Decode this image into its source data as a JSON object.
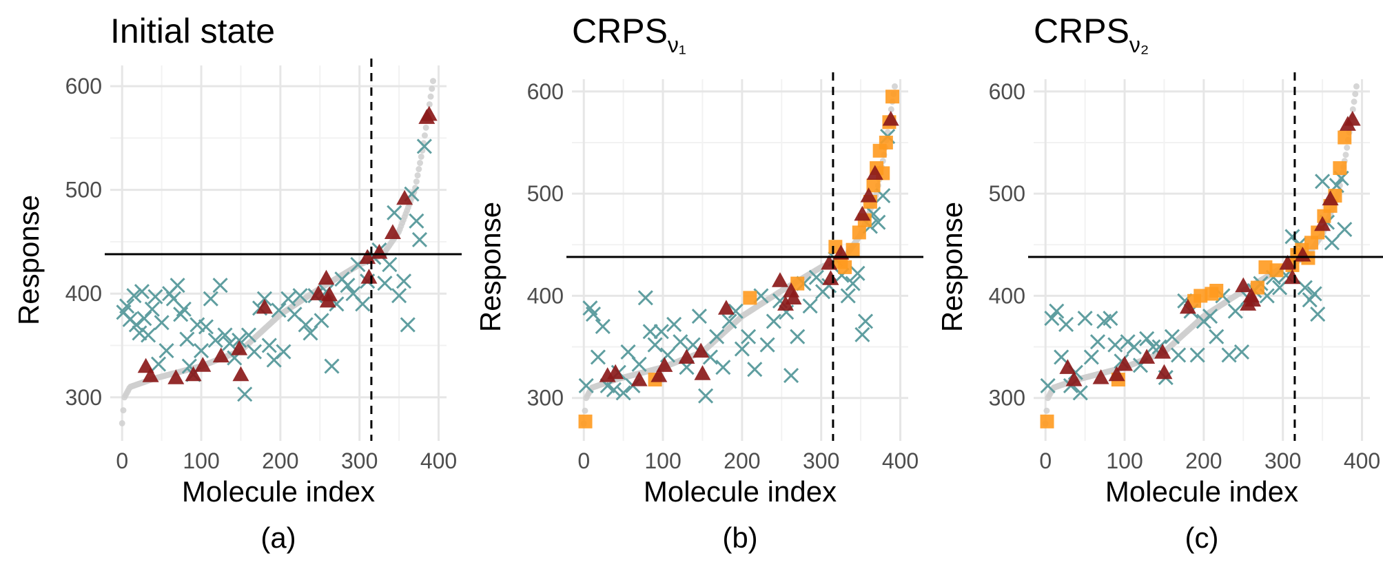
{
  "figure": {
    "captions": [
      "(a)",
      "(b)",
      "(c)"
    ]
  },
  "colors": {
    "background_curve": "#cfcfcf",
    "triangle": "#8b1a1a",
    "square": "#ff9a1f",
    "cross": "#5f9ea0",
    "grid_major": "#e6e6e6",
    "grid_minor": "#f2f2f2",
    "reference_line": "#000000"
  },
  "chart_data": [
    {
      "type": "scatter",
      "title": "Initial state",
      "title_subscript": "",
      "xlabel": "Molecule index",
      "ylabel": "Response",
      "caption": "(a)",
      "xlim": [
        -15,
        410
      ],
      "ylim": [
        258,
        612
      ],
      "xticks": [
        0,
        100,
        200,
        300,
        400
      ],
      "yticks": [
        300,
        400,
        500,
        600
      ],
      "xtick_labels": [
        "0",
        "100",
        "200",
        "300",
        "400"
      ],
      "ytick_labels": [
        "300",
        "400",
        "500",
        "600"
      ],
      "hline": 438,
      "vline": 315,
      "legend": "none",
      "series": [
        {
          "name": "triangles",
          "marker": "triangle",
          "x": [
            30,
            36,
            68,
            90,
            102,
            125,
            148,
            150,
            180,
            248,
            258,
            260,
            262,
            310,
            312,
            325,
            342,
            357,
            385,
            388
          ],
          "y": [
            330,
            321,
            319,
            322,
            331,
            340,
            347,
            322,
            387,
            400,
            415,
            393,
            399,
            435,
            416,
            440,
            459,
            492,
            570,
            573
          ]
        },
        {
          "name": "crosses",
          "marker": "x",
          "x": [
            2,
            6,
            10,
            15,
            18,
            22,
            25,
            28,
            33,
            38,
            42,
            46,
            50,
            56,
            60,
            65,
            70,
            74,
            78,
            82,
            85,
            90,
            95,
            100,
            106,
            112,
            118,
            124,
            130,
            136,
            142,
            148,
            155,
            160,
            167,
            174,
            180,
            186,
            192,
            198,
            204,
            210,
            218,
            225,
            232,
            238,
            244,
            252,
            258,
            265,
            271,
            278,
            285,
            292,
            298,
            304,
            310,
            318,
            325,
            332,
            338,
            344,
            350,
            356,
            361,
            366,
            372,
            376,
            382
          ],
          "y": [
            382,
            388,
            375,
            398,
            370,
            362,
            402,
            376,
            360,
            385,
            397,
            332,
            372,
            345,
            400,
            395,
            408,
            380,
            385,
            356,
            330,
            322,
            370,
            345,
            368,
            395,
            355,
            408,
            360,
            352,
            338,
            355,
            303,
            360,
            344,
            386,
            395,
            350,
            336,
            384,
            344,
            395,
            380,
            398,
            370,
            362,
            398,
            374,
            402,
            330,
            390,
            414,
            408,
            400,
            428,
            390,
            412,
            435,
            442,
            410,
            428,
            478,
            398,
            412,
            370,
            496,
            470,
            452,
            542
          ]
        }
      ]
    },
    {
      "type": "scatter",
      "title": "CRPS",
      "title_subscript": "ν₁",
      "xlabel": "Molecule index",
      "ylabel": "Response",
      "caption": "(b)",
      "xlim": [
        -15,
        410
      ],
      "ylim": [
        258,
        612
      ],
      "xticks": [
        0,
        100,
        200,
        300,
        400
      ],
      "yticks": [
        300,
        400,
        500,
        600
      ],
      "xtick_labels": [
        "0",
        "100",
        "200",
        "300",
        "400"
      ],
      "ytick_labels": [
        "300",
        "400",
        "500",
        "600"
      ],
      "hline": 438,
      "vline": 315,
      "legend": "none",
      "series": [
        {
          "name": "triangles",
          "marker": "triangle",
          "x": [
            30,
            40,
            70,
            95,
            102,
            130,
            148,
            150,
            180,
            248,
            255,
            262,
            265,
            310,
            312,
            325,
            352,
            360,
            368,
            388
          ],
          "y": [
            322,
            325,
            318,
            322,
            332,
            340,
            346,
            324,
            388,
            415,
            392,
            405,
            398,
            432,
            417,
            442,
            480,
            498,
            520,
            573
          ]
        },
        {
          "name": "squares",
          "marker": "square",
          "x": [
            2,
            90,
            210,
            270,
            318,
            325,
            330,
            340,
            348,
            355,
            362,
            366,
            370,
            374,
            378,
            382,
            386,
            390
          ],
          "y": [
            277,
            318,
            398,
            412,
            448,
            433,
            428,
            445,
            462,
            474,
            492,
            508,
            525,
            542,
            520,
            550,
            570,
            595
          ]
        },
        {
          "name": "crosses",
          "marker": "x",
          "x": [
            3,
            8,
            12,
            18,
            24,
            30,
            38,
            44,
            50,
            56,
            62,
            70,
            78,
            84,
            90,
            98,
            106,
            114,
            122,
            130,
            138,
            146,
            154,
            160,
            168,
            176,
            184,
            192,
            200,
            208,
            216,
            224,
            232,
            240,
            248,
            256,
            262,
            270,
            278,
            286,
            294,
            302,
            310,
            318,
            326,
            334,
            340,
            346,
            352,
            356,
            362,
            366,
            372,
            378,
            384
          ],
          "y": [
            312,
            388,
            382,
            340,
            370,
            312,
            308,
            325,
            305,
            345,
            312,
            333,
            398,
            365,
            352,
            365,
            342,
            372,
            355,
            330,
            352,
            380,
            302,
            340,
            360,
            330,
            375,
            385,
            348,
            360,
            328,
            400,
            352,
            375,
            395,
            384,
            322,
            360,
            412,
            390,
            418,
            404,
            410,
            436,
            420,
            400,
            412,
            422,
            362,
            375,
            468,
            480,
            472,
            498,
            556
          ]
        }
      ]
    },
    {
      "type": "scatter",
      "title": "CRPS",
      "title_subscript": "ν₂",
      "xlabel": "Molecule index",
      "ylabel": "Response",
      "caption": "(c)",
      "xlim": [
        -15,
        410
      ],
      "ylim": [
        258,
        612
      ],
      "xticks": [
        0,
        100,
        200,
        300,
        400
      ],
      "yticks": [
        300,
        400,
        500,
        600
      ],
      "xtick_labels": [
        "0",
        "100",
        "200",
        "300",
        "400"
      ],
      "ytick_labels": [
        "300",
        "400",
        "500",
        "600"
      ],
      "hline": 438,
      "vline": 315,
      "legend": "none",
      "series": [
        {
          "name": "triangles",
          "marker": "triangle",
          "x": [
            28,
            36,
            70,
            90,
            100,
            128,
            148,
            150,
            180,
            250,
            256,
            260,
            262,
            306,
            312,
            325,
            350,
            360,
            382,
            388
          ],
          "y": [
            330,
            318,
            320,
            323,
            333,
            340,
            345,
            325,
            389,
            410,
            392,
            400,
            396,
            432,
            418,
            440,
            470,
            495,
            568,
            573
          ]
        },
        {
          "name": "squares",
          "marker": "square",
          "x": [
            2,
            92,
            188,
            196,
            210,
            216,
            268,
            278,
            292,
            312,
            318,
            324,
            332,
            336,
            344,
            352,
            360,
            366,
            372,
            378
          ],
          "y": [
            277,
            318,
            395,
            400,
            402,
            405,
            408,
            428,
            425,
            430,
            440,
            445,
            437,
            452,
            462,
            478,
            488,
            498,
            525,
            555
          ]
        },
        {
          "name": "crosses",
          "marker": "x",
          "x": [
            3,
            8,
            14,
            20,
            26,
            32,
            38,
            44,
            50,
            58,
            66,
            74,
            82,
            88,
            96,
            104,
            112,
            120,
            128,
            136,
            144,
            152,
            160,
            168,
            176,
            184,
            192,
            200,
            208,
            216,
            224,
            232,
            240,
            248,
            256,
            264,
            272,
            280,
            288,
            296,
            304,
            312,
            320,
            328,
            334,
            340,
            344,
            350,
            356,
            362,
            368,
            374,
            378
          ],
          "y": [
            312,
            378,
            385,
            340,
            372,
            312,
            325,
            305,
            378,
            340,
            355,
            375,
            378,
            352,
            336,
            355,
            350,
            332,
            358,
            350,
            350,
            320,
            360,
            342,
            395,
            385,
            342,
            375,
            380,
            360,
            400,
            342,
            385,
            345,
            398,
            405,
            412,
            400,
            418,
            408,
            420,
            458,
            450,
            408,
            396,
            402,
            382,
            512,
            472,
            452,
            508,
            515,
            465
          ]
        }
      ]
    }
  ]
}
